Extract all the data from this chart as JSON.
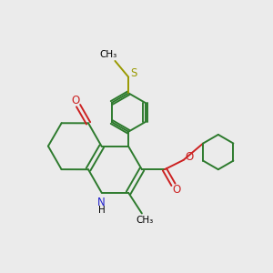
{
  "bg_color": "#ebebeb",
  "bond_color": "#2d7a2d",
  "n_color": "#2222cc",
  "o_color": "#cc2020",
  "s_color": "#999900",
  "lw": 1.4,
  "fs": 8.5,
  "fig_bg": "#ebebeb",
  "xlim": [
    0,
    10
  ],
  "ylim": [
    0,
    10
  ]
}
